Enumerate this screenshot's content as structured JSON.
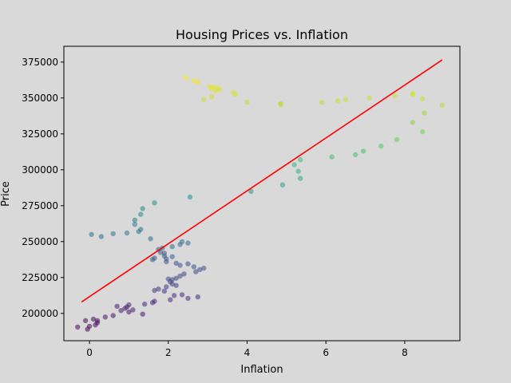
{
  "chart_data": {
    "type": "scatter",
    "title": "Housing Prices vs. Inflation",
    "xlabel": "Inflation",
    "ylabel": "Price",
    "xlim": [
      -0.65,
      9.4
    ],
    "ylim": [
      181000,
      386000
    ],
    "x_ticks": [
      0,
      2,
      4,
      6,
      8
    ],
    "y_ticks": [
      200000,
      225000,
      250000,
      275000,
      300000,
      325000,
      350000,
      375000
    ],
    "x_tick_labels": [
      "0",
      "2",
      "4",
      "6",
      "8"
    ],
    "y_tick_labels": [
      "200000",
      "225000",
      "250000",
      "275000",
      "300000",
      "325000",
      "350000",
      "375000"
    ],
    "grid": false,
    "colormap": "viridis",
    "point_opacity": 0.55,
    "regression_line": {
      "color": "#ff0000",
      "x": [
        -0.2,
        8.95
      ],
      "y": [
        208000,
        376500
      ]
    },
    "series": [
      {
        "values": [
          [
            -0.3,
            190500
          ],
          [
            -0.1,
            195000
          ],
          [
            -0.05,
            189000
          ],
          [
            0.0,
            191000
          ],
          [
            0.1,
            196000
          ],
          [
            0.15,
            192000
          ],
          [
            0.2,
            193500
          ],
          [
            0.2,
            195000
          ],
          [
            0.4,
            197500
          ],
          [
            0.6,
            198500
          ],
          [
            0.7,
            205000
          ],
          [
            0.8,
            202000
          ],
          [
            0.9,
            203500
          ],
          [
            0.95,
            204500
          ],
          [
            1.0,
            206000
          ],
          [
            1.0,
            201000
          ],
          [
            1.1,
            202500
          ],
          [
            1.35,
            199500
          ],
          [
            1.4,
            206500
          ],
          [
            1.6,
            207500
          ],
          [
            1.65,
            208500
          ],
          [
            1.65,
            216000
          ],
          [
            1.75,
            217000
          ],
          [
            1.9,
            215500
          ],
          [
            1.95,
            218500
          ],
          [
            2.05,
            209500
          ],
          [
            2.1,
            220500
          ],
          [
            2.15,
            212500
          ],
          [
            2.2,
            219500
          ],
          [
            2.35,
            213000
          ],
          [
            2.5,
            210500
          ],
          [
            2.75,
            211500
          ],
          [
            2.0,
            224000
          ],
          [
            2.05,
            222000
          ],
          [
            2.1,
            223500
          ],
          [
            2.2,
            224500
          ],
          [
            2.3,
            226000
          ],
          [
            2.4,
            227500
          ],
          [
            2.65,
            232500
          ],
          [
            2.7,
            229000
          ],
          [
            2.8,
            230500
          ],
          [
            2.9,
            231500
          ],
          [
            2.2,
            235000
          ],
          [
            2.3,
            233500
          ],
          [
            2.5,
            234500
          ],
          [
            1.6,
            237500
          ],
          [
            1.65,
            238500
          ],
          [
            1.8,
            242500
          ],
          [
            1.9,
            240000
          ],
          [
            1.95,
            238000
          ],
          [
            1.95,
            236000
          ],
          [
            2.1,
            239500
          ],
          [
            1.75,
            244500
          ],
          [
            1.85,
            245500
          ],
          [
            1.9,
            242000
          ],
          [
            2.1,
            246500
          ],
          [
            2.3,
            248000
          ],
          [
            2.35,
            250000
          ],
          [
            2.5,
            249000
          ],
          [
            0.05,
            255000
          ],
          [
            0.3,
            253500
          ],
          [
            0.6,
            255500
          ],
          [
            0.95,
            256000
          ],
          [
            1.25,
            257000
          ],
          [
            1.3,
            258500
          ],
          [
            1.55,
            252000
          ],
          [
            1.15,
            262000
          ],
          [
            1.15,
            265000
          ],
          [
            1.3,
            269000
          ],
          [
            1.35,
            273000
          ],
          [
            1.65,
            277000
          ],
          [
            2.55,
            281000
          ],
          [
            4.1,
            285000
          ],
          [
            4.9,
            289500
          ],
          [
            5.2,
            303500
          ],
          [
            5.3,
            299000
          ],
          [
            5.35,
            294000
          ],
          [
            5.35,
            307000
          ],
          [
            6.15,
            309000
          ],
          [
            6.75,
            310500
          ],
          [
            6.95,
            313000
          ],
          [
            7.4,
            316500
          ],
          [
            7.8,
            321000
          ],
          [
            8.2,
            333000
          ],
          [
            8.45,
            326500
          ],
          [
            8.5,
            339500
          ],
          [
            8.95,
            345000
          ],
          [
            4.85,
            346000
          ],
          [
            4.85,
            345500
          ],
          [
            5.9,
            347000
          ],
          [
            6.3,
            348000
          ],
          [
            6.5,
            349000
          ],
          [
            7.1,
            350000
          ],
          [
            7.75,
            351500
          ],
          [
            8.2,
            352500
          ],
          [
            8.2,
            353000
          ],
          [
            8.45,
            349500
          ],
          [
            4.0,
            347000
          ],
          [
            3.65,
            354000
          ],
          [
            3.7,
            352500
          ],
          [
            2.9,
            349000
          ],
          [
            3.1,
            351000
          ],
          [
            2.45,
            364000
          ],
          [
            2.65,
            362000
          ],
          [
            2.75,
            361000
          ],
          [
            3.05,
            358000
          ],
          [
            3.1,
            356500
          ],
          [
            3.15,
            357500
          ],
          [
            3.2,
            355000
          ],
          [
            3.25,
            357000
          ],
          [
            3.3,
            356000
          ]
        ]
      }
    ]
  }
}
